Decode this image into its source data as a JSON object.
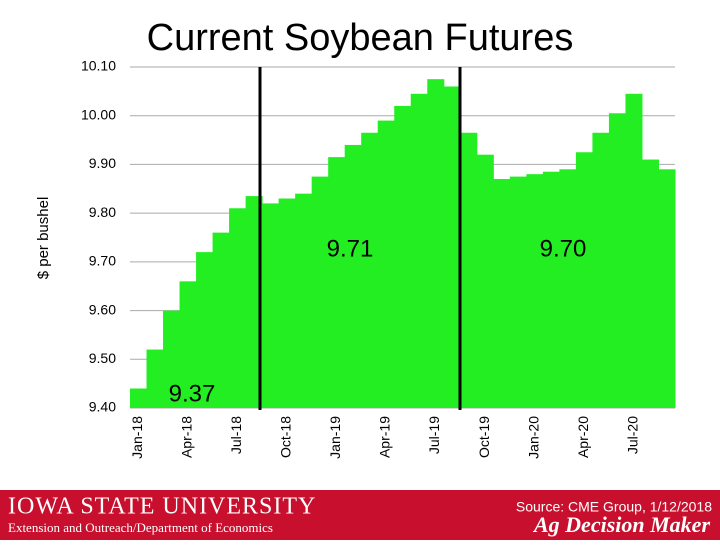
{
  "chart_data": {
    "type": "bar",
    "title": "Current Soybean Futures",
    "y_label": "$ per bushel",
    "categories": [
      "Jan-18",
      null,
      null,
      "Apr-18",
      null,
      null,
      "Jul-18",
      null,
      null,
      "Oct-18",
      null,
      null,
      "Jan-19",
      null,
      null,
      "Apr-19",
      null,
      null,
      "Jul-19",
      null,
      null,
      "Oct-19",
      null,
      null,
      "Jan-20",
      null,
      null,
      "Apr-20",
      null,
      null,
      "Jul-20",
      null,
      null
    ],
    "values": [
      9.44,
      9.52,
      9.6,
      9.66,
      9.72,
      9.76,
      9.81,
      9.835,
      9.82,
      9.83,
      9.84,
      9.875,
      9.915,
      9.94,
      9.965,
      9.99,
      10.02,
      10.045,
      10.075,
      10.06,
      9.965,
      9.92,
      9.87,
      9.875,
      9.88,
      9.885,
      9.89,
      9.925,
      9.965,
      10.005,
      10.045,
      9.91,
      9.89
    ],
    "color": "#22ee22",
    "ylim": [
      9.4,
      10.1
    ],
    "yticks": [
      {
        "value": 9.4,
        "label": "9.40"
      },
      {
        "value": 9.5,
        "label": "9.50"
      },
      {
        "value": 9.6,
        "label": "9.60"
      },
      {
        "value": 9.7,
        "label": "9.70"
      },
      {
        "value": 9.8,
        "label": "9.80"
      },
      {
        "value": 9.9,
        "label": "9.90"
      },
      {
        "value": 10.0,
        "label": "10.00"
      },
      {
        "value": 10.1,
        "label": "10.10"
      }
    ],
    "grid": true,
    "annotations": [
      "9.71",
      "9.70",
      "9.37"
    ]
  },
  "footer": {
    "university": "IOWA STATE UNIVERSITY",
    "department": "Extension and Outreach/Department of Economics",
    "source": "Source: CME Group, 1/12/2018",
    "brand": "Ag Decision Maker"
  }
}
